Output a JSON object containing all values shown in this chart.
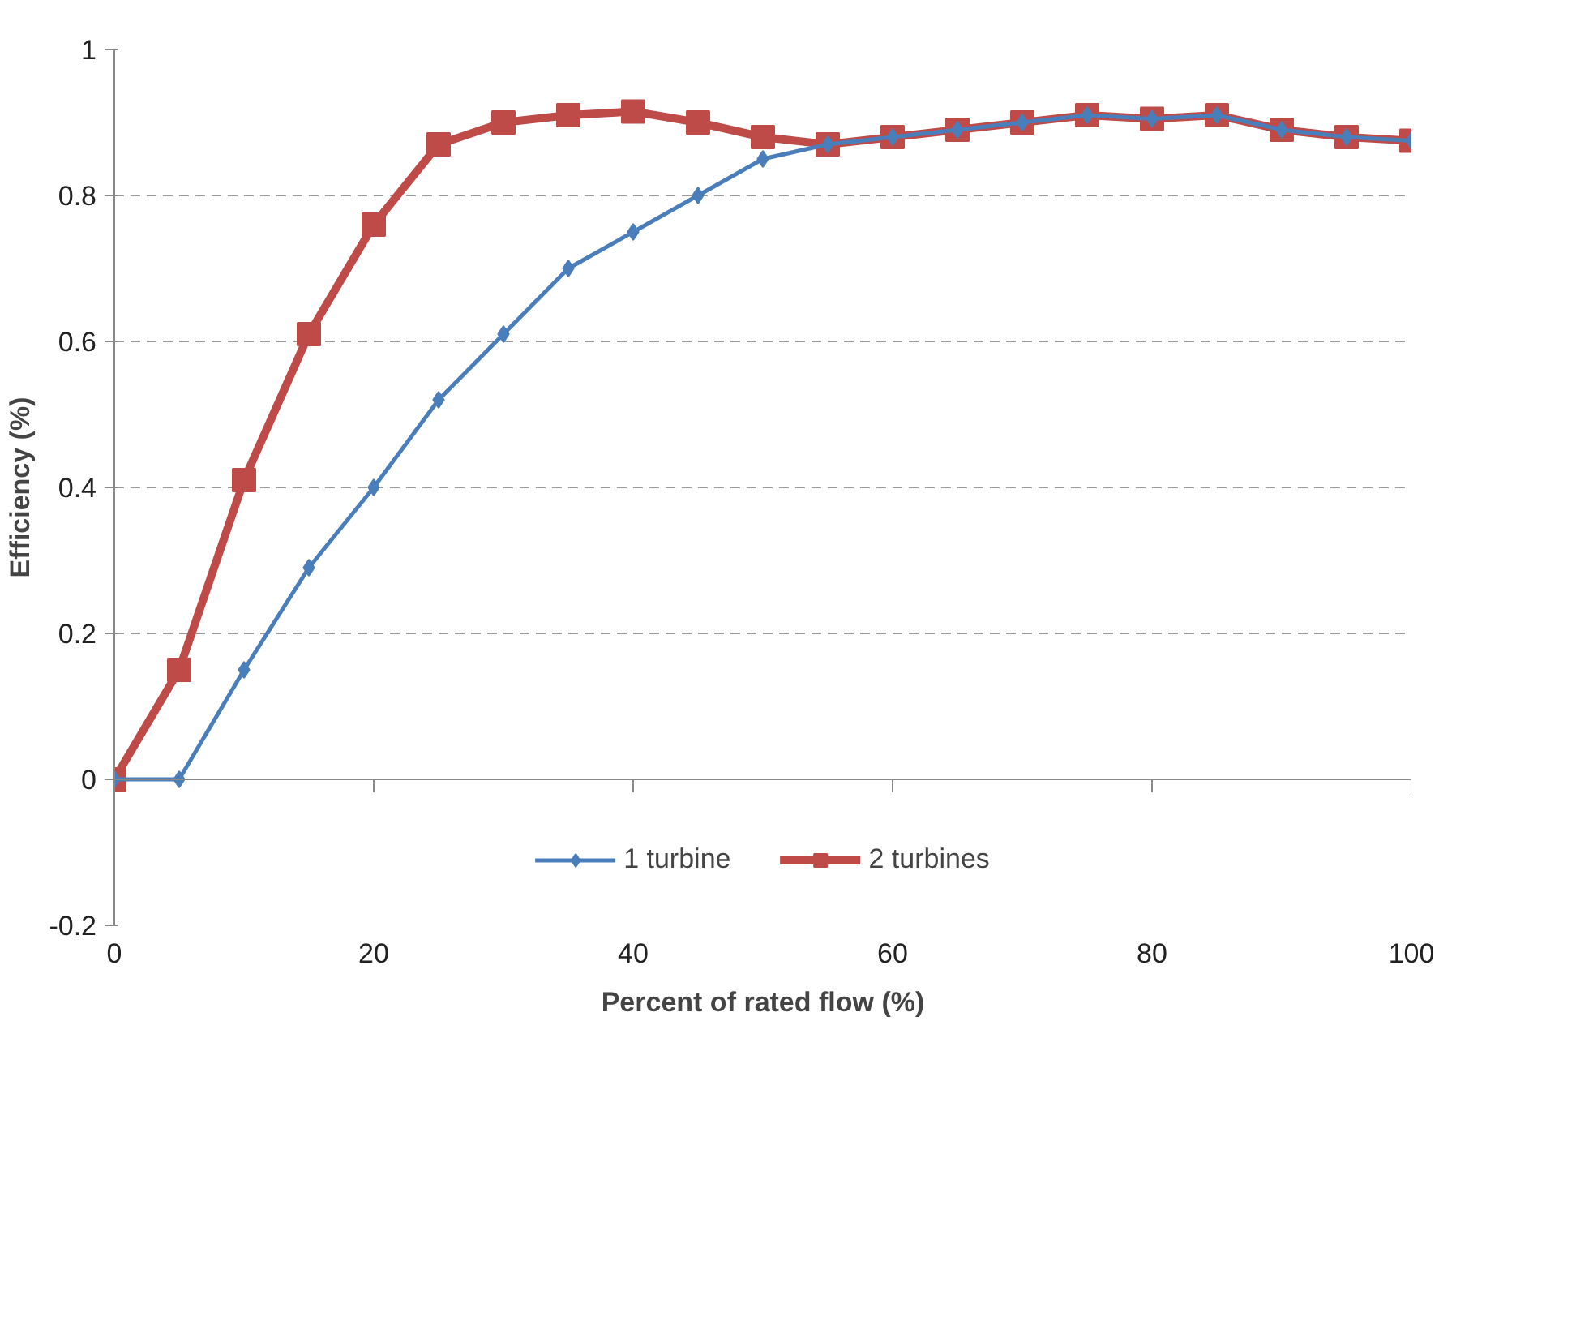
{
  "chart_data": {
    "type": "line",
    "xlabel": "Percent of rated flow (%)",
    "ylabel": "Efficiency (%)",
    "x": [
      0,
      5,
      10,
      15,
      20,
      25,
      30,
      35,
      40,
      45,
      50,
      55,
      60,
      65,
      70,
      75,
      80,
      85,
      90,
      95,
      100
    ],
    "series": [
      {
        "name": "1 turbine",
        "color": "#4a7ebb",
        "marker": "diamond",
        "values": [
          0,
          0,
          0.15,
          0.29,
          0.4,
          0.52,
          0.61,
          0.7,
          0.75,
          0.8,
          0.85,
          0.87,
          0.88,
          0.89,
          0.9,
          0.91,
          0.905,
          0.91,
          0.89,
          0.88,
          0.875
        ]
      },
      {
        "name": "2 turbines",
        "color": "#be4b48",
        "marker": "square",
        "values": [
          0,
          0.15,
          0.41,
          0.61,
          0.76,
          0.87,
          0.9,
          0.91,
          0.915,
          0.9,
          0.88,
          0.87,
          0.88,
          0.89,
          0.9,
          0.91,
          0.905,
          0.91,
          0.89,
          0.88,
          0.875
        ]
      }
    ],
    "xlim": [
      0,
      100
    ],
    "xticks": [
      0,
      20,
      40,
      60,
      80,
      100
    ],
    "ylim": [
      -0.2,
      1
    ],
    "yticks": [
      -0.2,
      0,
      0.2,
      0.4,
      0.6,
      0.8,
      1
    ],
    "grid": "y",
    "legend": "bottom",
    "line_style": "solid"
  }
}
